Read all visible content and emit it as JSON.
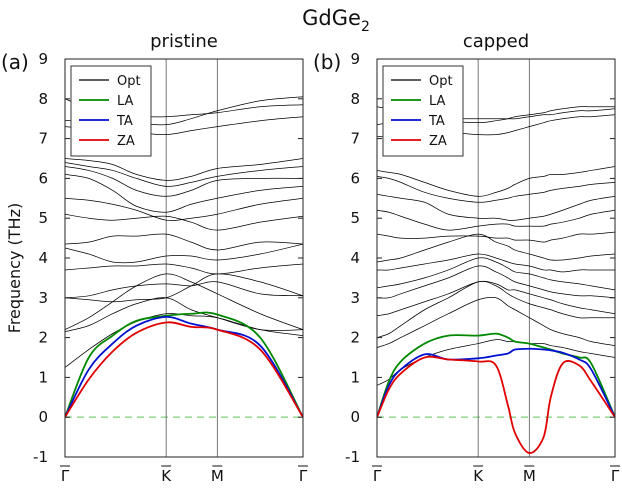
{
  "title": "GdGe",
  "title_subscript": "2",
  "ylabel": "Frequency (THz)",
  "colors": {
    "optical": "#000000",
    "LA": "#008800",
    "TA": "#0010d0",
    "ZA": "#e00000",
    "zero_line": "#99dd99"
  },
  "chart_data": [
    {
      "type": "line",
      "panel_label": "(a)",
      "title": "pristine",
      "ylim": [
        -1,
        9
      ],
      "yticks": [
        "-1",
        "0",
        "1",
        "2",
        "3",
        "4",
        "5",
        "6",
        "7",
        "8",
        "9"
      ],
      "xticks": [
        {
          "label": "Γ",
          "pos": 0.0
        },
        {
          "label": "K",
          "pos": 0.425
        },
        {
          "label": "M",
          "pos": 0.64
        },
        {
          "label": "Γ",
          "pos": 1.0
        }
      ],
      "x": [
        0.0,
        0.1,
        0.2,
        0.3,
        0.425,
        0.53,
        0.64,
        0.82,
        1.0
      ],
      "legend": [
        "Opt",
        "LA",
        "TA",
        "ZA"
      ],
      "series": [
        {
          "name": "LA",
          "values": [
            0.0,
            1.5,
            2.05,
            2.42,
            2.55,
            2.6,
            2.58,
            2.0,
            0.0
          ]
        },
        {
          "name": "TA",
          "values": [
            0.0,
            1.2,
            1.85,
            2.3,
            2.52,
            2.35,
            2.2,
            1.8,
            0.0
          ]
        },
        {
          "name": "ZA",
          "values": [
            0.0,
            0.95,
            1.65,
            2.12,
            2.38,
            2.27,
            2.2,
            1.7,
            0.0
          ]
        },
        {
          "name": "Opt",
          "values": [
            1.25,
            1.7,
            2.1,
            2.4,
            2.6,
            2.55,
            2.5,
            2.2,
            2.05
          ]
        },
        {
          "name": "Opt",
          "values": [
            2.15,
            2.3,
            2.6,
            2.85,
            3.0,
            2.7,
            2.5,
            2.2,
            2.2
          ]
        },
        {
          "name": "Opt",
          "values": [
            2.2,
            2.5,
            2.9,
            3.3,
            3.6,
            3.4,
            3.1,
            2.6,
            2.2
          ]
        },
        {
          "name": "Opt",
          "values": [
            3.0,
            3.05,
            3.2,
            3.3,
            3.35,
            3.3,
            3.4,
            3.1,
            3.05
          ]
        },
        {
          "name": "Opt",
          "values": [
            3.0,
            2.95,
            2.9,
            2.95,
            3.0,
            3.3,
            3.6,
            3.4,
            3.05
          ]
        },
        {
          "name": "Opt",
          "values": [
            3.7,
            3.75,
            3.8,
            3.8,
            3.85,
            3.75,
            3.6,
            3.75,
            3.85
          ]
        },
        {
          "name": "Opt",
          "values": [
            4.25,
            4.1,
            3.9,
            3.9,
            4.05,
            4.05,
            3.95,
            4.1,
            4.35
          ]
        },
        {
          "name": "Opt",
          "values": [
            4.35,
            4.4,
            4.55,
            4.55,
            4.6,
            4.4,
            4.2,
            4.4,
            4.35
          ]
        },
        {
          "name": "Opt",
          "values": [
            5.1,
            5.0,
            4.95,
            5.0,
            5.05,
            4.9,
            4.7,
            4.9,
            5.05
          ]
        },
        {
          "name": "Opt",
          "values": [
            5.5,
            5.45,
            5.35,
            5.2,
            4.95,
            5.0,
            5.1,
            5.35,
            5.5
          ]
        },
        {
          "name": "Opt",
          "values": [
            6.1,
            6.0,
            5.7,
            5.3,
            5.15,
            5.35,
            5.5,
            5.7,
            5.8
          ]
        },
        {
          "name": "Opt",
          "values": [
            6.3,
            6.2,
            6.0,
            5.7,
            5.55,
            5.7,
            5.95,
            6.0,
            6.0
          ]
        },
        {
          "name": "Opt",
          "values": [
            6.4,
            6.3,
            6.2,
            6.0,
            5.8,
            5.9,
            6.05,
            6.2,
            6.3
          ]
        },
        {
          "name": "Opt",
          "values": [
            6.5,
            6.45,
            6.35,
            6.1,
            5.95,
            6.05,
            6.25,
            6.35,
            6.5
          ]
        },
        {
          "name": "Opt",
          "values": [
            7.3,
            7.25,
            7.2,
            7.15,
            7.1,
            7.2,
            7.3,
            7.45,
            7.55
          ]
        },
        {
          "name": "Opt",
          "values": [
            7.45,
            7.5,
            7.55,
            7.55,
            7.55,
            7.6,
            7.65,
            7.8,
            7.85
          ]
        },
        {
          "name": "Opt",
          "values": [
            8.0,
            7.75,
            7.55,
            7.4,
            7.35,
            7.5,
            7.7,
            7.95,
            8.05
          ]
        }
      ]
    },
    {
      "type": "line",
      "panel_label": "(b)",
      "title": "capped",
      "ylim": [
        -1,
        9
      ],
      "yticks": [
        "-1",
        "0",
        "1",
        "2",
        "3",
        "4",
        "5",
        "6",
        "7",
        "8",
        "9"
      ],
      "xticks": [
        {
          "label": "Γ",
          "pos": 0.0
        },
        {
          "label": "K",
          "pos": 0.425
        },
        {
          "label": "M",
          "pos": 0.64
        },
        {
          "label": "Γ",
          "pos": 1.0
        }
      ],
      "x": [
        0.0,
        0.05,
        0.1,
        0.2,
        0.3,
        0.425,
        0.5,
        0.55,
        0.58,
        0.64,
        0.7,
        0.73,
        0.78,
        0.85,
        0.9,
        1.0
      ],
      "legend": [
        "Opt",
        "LA",
        "TA",
        "ZA"
      ],
      "series": [
        {
          "name": "LA",
          "values": [
            0.0,
            0.9,
            1.4,
            1.85,
            2.05,
            2.05,
            2.1,
            2.0,
            1.9,
            1.85,
            1.75,
            1.7,
            1.6,
            1.5,
            1.35,
            0.0
          ]
        },
        {
          "name": "TA",
          "values": [
            0.0,
            0.8,
            1.2,
            1.58,
            1.45,
            1.48,
            1.55,
            1.6,
            1.7,
            1.72,
            1.7,
            1.68,
            1.62,
            1.45,
            1.2,
            0.0
          ]
        },
        {
          "name": "ZA",
          "values": [
            0.0,
            0.7,
            1.1,
            1.5,
            1.45,
            1.4,
            1.3,
            0.3,
            -0.4,
            -0.9,
            -0.5,
            0.5,
            1.35,
            1.3,
            0.9,
            0.0
          ]
        },
        {
          "name": "Opt",
          "values": [
            0.8,
            0.95,
            1.2,
            1.5,
            1.7,
            1.85,
            1.95,
            1.9,
            1.9,
            1.85,
            1.85,
            1.8,
            1.75,
            1.65,
            1.6,
            1.5
          ]
        },
        {
          "name": "Opt",
          "values": [
            1.75,
            1.85,
            2.0,
            2.3,
            2.6,
            2.95,
            3.0,
            2.8,
            2.7,
            2.5,
            2.3,
            2.2,
            2.1,
            2.0,
            1.9,
            1.8
          ]
        },
        {
          "name": "Opt",
          "values": [
            2.0,
            2.1,
            2.3,
            2.7,
            3.0,
            3.4,
            3.3,
            3.1,
            3.0,
            2.85,
            2.75,
            2.7,
            2.6,
            2.5,
            2.5,
            2.5
          ]
        },
        {
          "name": "Opt",
          "values": [
            2.55,
            2.6,
            2.7,
            2.9,
            3.1,
            3.4,
            3.35,
            3.2,
            3.2,
            3.1,
            3.0,
            2.95,
            2.85,
            2.75,
            2.7,
            2.6
          ]
        },
        {
          "name": "Opt",
          "values": [
            3.0,
            3.0,
            3.1,
            3.3,
            3.5,
            3.8,
            3.65,
            3.5,
            3.4,
            3.3,
            3.2,
            3.15,
            3.1,
            3.05,
            3.05,
            3.0
          ]
        },
        {
          "name": "Opt",
          "values": [
            3.25,
            3.3,
            3.35,
            3.5,
            3.7,
            4.0,
            3.9,
            3.75,
            3.65,
            3.6,
            3.5,
            3.45,
            3.4,
            3.35,
            3.3,
            3.2
          ]
        },
        {
          "name": "Opt",
          "values": [
            3.7,
            3.7,
            3.75,
            3.85,
            3.95,
            4.1,
            4.0,
            3.9,
            3.85,
            3.8,
            3.7,
            3.7,
            3.65,
            3.7,
            3.7,
            3.7
          ]
        },
        {
          "name": "Opt",
          "values": [
            3.9,
            3.95,
            4.0,
            4.2,
            4.4,
            4.6,
            4.4,
            4.3,
            4.2,
            4.1,
            4.0,
            3.95,
            3.95,
            4.0,
            4.05,
            4.1
          ]
        },
        {
          "name": "Opt",
          "values": [
            4.6,
            4.55,
            4.5,
            4.5,
            4.55,
            4.55,
            4.5,
            4.5,
            4.45,
            4.45,
            4.4,
            4.45,
            4.5,
            4.6,
            4.6,
            4.65
          ]
        },
        {
          "name": "Opt",
          "values": [
            5.2,
            5.15,
            5.05,
            4.85,
            4.7,
            4.8,
            4.85,
            4.85,
            4.8,
            4.8,
            4.8,
            4.85,
            4.9,
            5.0,
            5.1,
            5.2
          ]
        },
        {
          "name": "Opt",
          "values": [
            5.6,
            5.55,
            5.5,
            5.4,
            5.1,
            5.0,
            5.0,
            4.95,
            4.95,
            5.0,
            5.05,
            5.1,
            5.2,
            5.35,
            5.45,
            5.55
          ]
        },
        {
          "name": "Opt",
          "values": [
            6.05,
            6.0,
            5.9,
            5.65,
            5.5,
            5.4,
            5.45,
            5.5,
            5.55,
            5.6,
            5.65,
            5.7,
            5.75,
            5.8,
            5.85,
            5.9
          ]
        },
        {
          "name": "Opt",
          "values": [
            6.2,
            6.15,
            6.1,
            5.9,
            5.7,
            5.55,
            5.65,
            5.75,
            5.85,
            6.0,
            6.05,
            6.1,
            6.1,
            6.15,
            6.2,
            6.3
          ]
        },
        {
          "name": "Opt",
          "values": [
            7.05,
            7.05,
            7.1,
            7.1,
            7.15,
            7.1,
            7.1,
            7.15,
            7.2,
            7.3,
            7.4,
            7.45,
            7.5,
            7.55,
            7.55,
            7.6
          ]
        },
        {
          "name": "Opt",
          "values": [
            7.35,
            7.4,
            7.45,
            7.5,
            7.5,
            7.5,
            7.5,
            7.5,
            7.5,
            7.55,
            7.6,
            7.6,
            7.65,
            7.7,
            7.7,
            7.75
          ]
        },
        {
          "name": "Opt",
          "values": [
            7.8,
            7.75,
            7.7,
            7.55,
            7.45,
            7.4,
            7.45,
            7.5,
            7.55,
            7.6,
            7.65,
            7.7,
            7.75,
            7.8,
            7.8,
            7.8
          ]
        }
      ]
    }
  ]
}
